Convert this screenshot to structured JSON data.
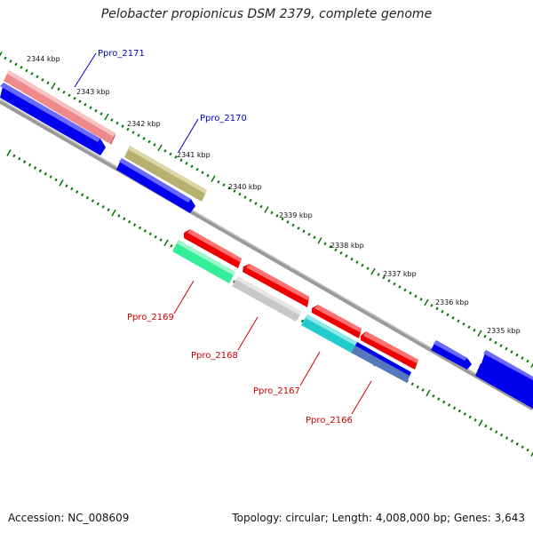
{
  "map": {
    "title": "Pelobacter propionicus DSM 2379, complete genome",
    "accession_text": "Accession: NC_008609",
    "summary_text": "Topology: circular; Length: 4,008,000 bp; Genes: 3,643",
    "tick_labels": [
      "2344 kbp",
      "2343 kbp",
      "2342 kbp",
      "2341 kbp",
      "2340 kbp",
      "2339 kbp",
      "2338 kbp",
      "2337 kbp",
      "2336 kbp",
      "2335 kbp"
    ],
    "genes": [
      {
        "label": "Ppro_2171",
        "color": "#ee8a8a",
        "label_color": "#0000cc"
      },
      {
        "label": "Ppro_2170",
        "color": "#b8b070",
        "label_color": "#0000cc"
      },
      {
        "label": "Ppro_2169",
        "color": "#33ee99",
        "label_color": "#cc0000"
      },
      {
        "label": "Ppro_2168",
        "color": "#c8c8c8",
        "label_color": "#cc0000"
      },
      {
        "label": "Ppro_2167",
        "color": "#22cccc",
        "label_color": "#cc0000"
      },
      {
        "label": "Ppro_2166",
        "color": "#5577bb",
        "label_color": "#cc0000"
      }
    ],
    "colors": {
      "forward_cds": "#0000ee",
      "reverse_cds": "#ee0000",
      "backbone": "#808080",
      "tick": "#007700"
    }
  }
}
